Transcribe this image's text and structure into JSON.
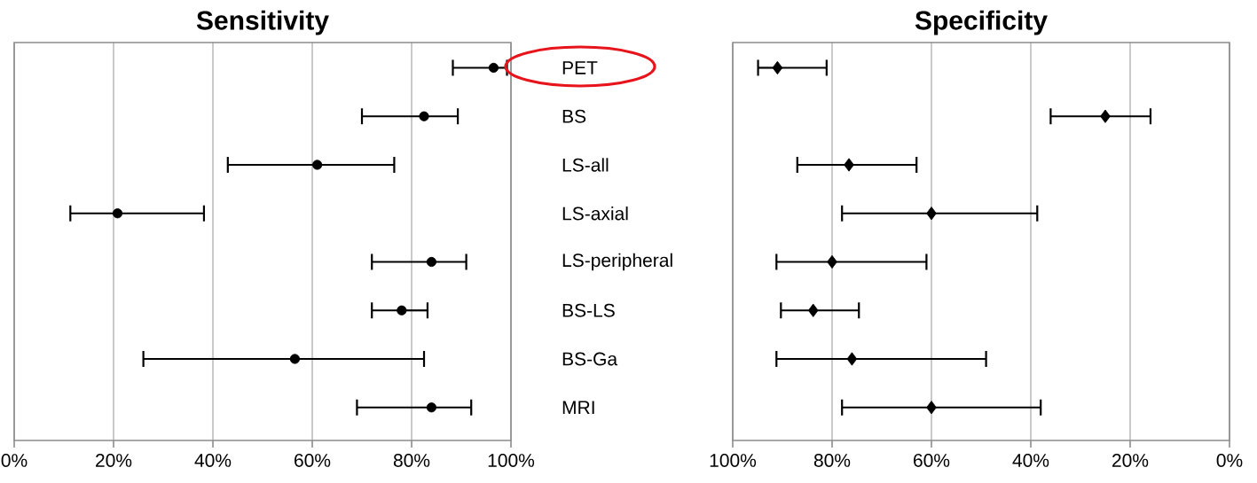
{
  "chart_data": [
    {
      "type": "scatter",
      "orientation": "horizontal",
      "title": "Sensitivity",
      "categories": [
        "PET",
        "BS",
        "LS-all",
        "LS-axial",
        "LS-peripheral",
        "BS-LS",
        "BS-Ga",
        "MRI"
      ],
      "series": [
        {
          "color": "#000000",
          "values": [
            96.5,
            82.5,
            61,
            20.8,
            84,
            78,
            56.5,
            84
          ],
          "errors": [
            [
              88.3,
              99.2
            ],
            [
              70,
              89.3
            ],
            [
              43,
              76.5
            ],
            [
              11.3,
              38.2
            ],
            [
              72,
              91
            ],
            [
              72,
              83.2
            ],
            [
              26,
              82.5
            ],
            [
              69,
              92
            ]
          ]
        }
      ],
      "xlim": [
        0,
        100
      ],
      "xticks": [
        {
          "value": 0,
          "label": "0%"
        },
        {
          "value": 20,
          "label": "20%"
        },
        {
          "value": 40,
          "label": "40%"
        },
        {
          "value": 60,
          "label": "60%"
        },
        {
          "value": 80,
          "label": "80%"
        },
        {
          "value": 100,
          "label": "100%"
        }
      ],
      "grid": "x",
      "marker": "circle"
    },
    {
      "type": "scatter",
      "orientation": "horizontal",
      "title": "Specificity",
      "categories": [
        null,
        null,
        null,
        null,
        null,
        null,
        null,
        null
      ],
      "series": [
        {
          "color": "#000000",
          "values": [
            91,
            25,
            76.6,
            60,
            80,
            83.8,
            76,
            60
          ],
          "errors": [
            [
              81.1,
              94.9
            ],
            [
              15.9,
              36
            ],
            [
              63,
              87
            ],
            [
              38.7,
              78
            ],
            [
              61,
              91.2
            ],
            [
              74.6,
              90.3
            ],
            [
              49,
              91.2
            ],
            [
              38,
              78
            ]
          ]
        }
      ],
      "xlim": [
        100,
        0
      ],
      "xticks": [
        {
          "value": 100,
          "label": "100%"
        },
        {
          "value": 80,
          "label": "80%"
        },
        {
          "value": 60,
          "label": "60%"
        },
        {
          "value": 40,
          "label": "40%"
        },
        {
          "value": 20,
          "label": "20%"
        },
        {
          "value": 0,
          "label": "0%"
        }
      ],
      "grid": "x",
      "marker": "diamond"
    }
  ]
}
